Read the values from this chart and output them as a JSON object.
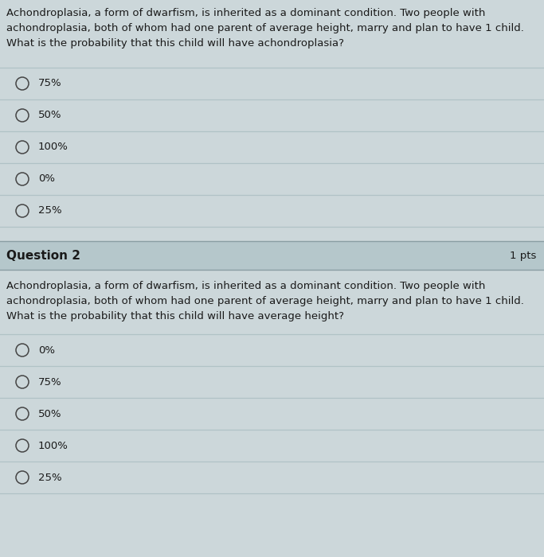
{
  "bg_color": "#ccd7da",
  "text_color": "#1a1a1a",
  "q1_text_lines": [
    "Achondroplasia, a form of dwarfism, is inherited as a dominant condition. Two people with",
    "achondroplasia, both of whom had one parent of average height, marry and plan to have 1 child.",
    "What is the probability that this child will have achondroplasia?"
  ],
  "q1_options": [
    "75%",
    "50%",
    "100%",
    "0%",
    "25%"
  ],
  "q2_label": "Question 2",
  "q2_pts": "1 pts",
  "q2_text_lines": [
    "Achondroplasia, a form of dwarfism, is inherited as a dominant condition. Two people with",
    "achondroplasia, both of whom had one parent of average height, marry and plan to have 1 child.",
    "What is the probability that this child will have average height?"
  ],
  "q2_options": [
    "0%",
    "75%",
    "50%",
    "100%",
    "25%"
  ],
  "line_color": "#b0c2c6",
  "q2_header_bg": "#b5c7cb",
  "fig_width": 6.83,
  "fig_height": 7.0,
  "dpi": 100
}
